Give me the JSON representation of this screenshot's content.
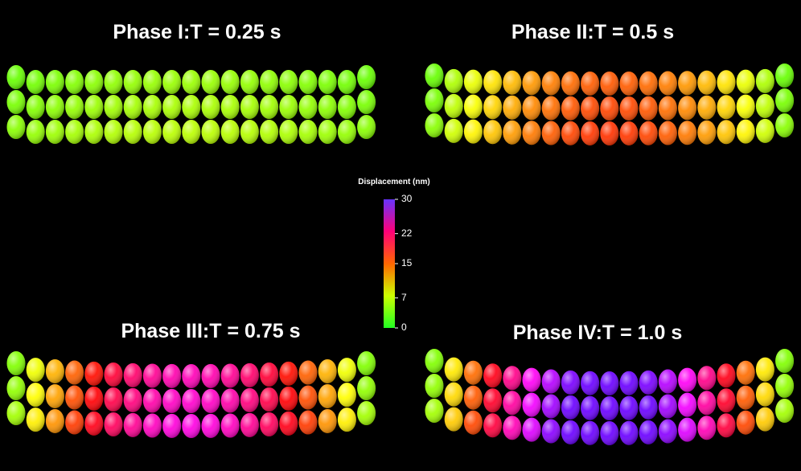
{
  "panels": [
    {
      "title": "Phase I:T = 0.25 s"
    },
    {
      "title": "Phase II:T = 0.5 s"
    },
    {
      "title": "Phase III:T = 0.75 s"
    },
    {
      "title": "Phase IV:T = 1.0 s"
    }
  ],
  "colorbar": {
    "label": "Displacement (nm)",
    "range": [
      0,
      30
    ],
    "ticks": [
      0,
      7,
      15,
      22,
      30
    ]
  }
}
